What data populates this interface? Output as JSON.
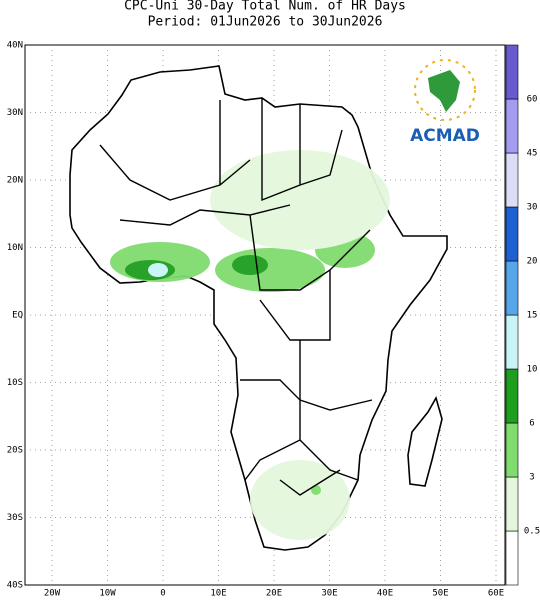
{
  "title": [
    "CPC-Uni 30-Day Total Num. of HR Days",
    "Period: 01Jun2026 to 30Jun2026"
  ],
  "lat_labels": [
    "40N",
    "30N",
    "20N",
    "10N",
    "EQ",
    "10S",
    "20S",
    "30S",
    "40S"
  ],
  "lon_labels": [
    "20W",
    "10W",
    "0",
    "10E",
    "20E",
    "30E",
    "40E",
    "50E",
    "60E"
  ],
  "colorbar": {
    "levels": [
      0.5,
      3,
      6,
      10,
      15,
      20,
      30,
      45,
      60
    ],
    "colors": [
      "#ffffff",
      "#e4f7dc",
      "#80dc6e",
      "#1e9e1e",
      "#c8f4f8",
      "#58a6ea",
      "#1c62d2",
      "#dcdcf6",
      "#a49cf0",
      "#6a5ad0"
    ]
  },
  "logo": "ACMAD"
}
